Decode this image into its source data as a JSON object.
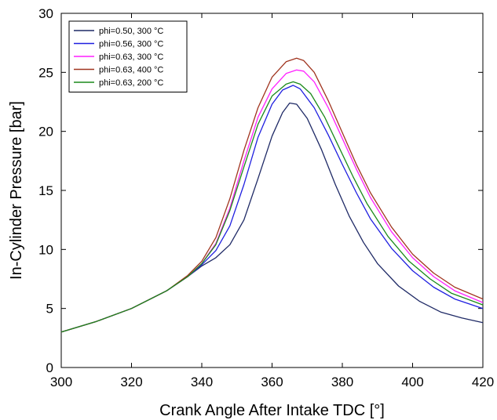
{
  "chart_data": {
    "type": "line",
    "title": "",
    "xlabel": "Crank Angle After Intake TDC [°]",
    "ylabel": "In-Cylinder Pressure [bar]",
    "xlim": [
      300,
      420
    ],
    "ylim": [
      0,
      30
    ],
    "xticks": [
      300,
      320,
      340,
      360,
      380,
      400,
      420
    ],
    "yticks": [
      0,
      5,
      10,
      15,
      20,
      25,
      30
    ],
    "grid": false,
    "legend_position": "top-left",
    "series": [
      {
        "name": "phi=0.50, 300 °C",
        "color": "#1f2a66",
        "x": [
          300,
          310,
          320,
          330,
          336,
          340,
          344,
          348,
          352,
          356,
          360,
          363,
          365,
          367,
          370,
          374,
          378,
          382,
          386,
          390,
          396,
          402,
          408,
          414,
          420
        ],
        "y": [
          3.0,
          3.9,
          5.0,
          6.5,
          7.7,
          8.6,
          9.3,
          10.4,
          12.5,
          16.0,
          19.6,
          21.6,
          22.4,
          22.3,
          21.1,
          18.5,
          15.5,
          12.8,
          10.6,
          8.8,
          6.9,
          5.6,
          4.7,
          4.2,
          3.8
        ]
      },
      {
        "name": "phi=0.56, 300 °C",
        "color": "#1f1fe0",
        "x": [
          300,
          310,
          320,
          330,
          336,
          340,
          344,
          348,
          352,
          356,
          360,
          363,
          366,
          368,
          372,
          376,
          380,
          384,
          388,
          394,
          400,
          406,
          412,
          420
        ],
        "y": [
          3.0,
          3.9,
          5.0,
          6.5,
          7.7,
          8.7,
          9.9,
          12.0,
          15.5,
          19.5,
          22.3,
          23.5,
          23.9,
          23.6,
          22.0,
          19.7,
          17.2,
          14.8,
          12.6,
          10.1,
          8.2,
          6.8,
          5.8,
          5.0
        ]
      },
      {
        "name": "phi=0.63, 300 °C",
        "color": "#ff1fff",
        "x": [
          300,
          310,
          320,
          330,
          336,
          340,
          344,
          348,
          352,
          356,
          360,
          364,
          367,
          369,
          372,
          376,
          380,
          384,
          388,
          394,
          400,
          406,
          412,
          420
        ],
        "y": [
          3.0,
          3.9,
          5.0,
          6.5,
          7.7,
          8.8,
          10.5,
          13.5,
          17.5,
          21.2,
          23.6,
          24.9,
          25.2,
          25.1,
          24.2,
          22.0,
          19.4,
          16.8,
          14.4,
          11.5,
          9.3,
          7.7,
          6.5,
          5.5
        ]
      },
      {
        "name": "phi=0.63, 400 °C",
        "color": "#a0341f",
        "x": [
          300,
          310,
          320,
          330,
          336,
          340,
          344,
          348,
          352,
          356,
          360,
          364,
          367,
          369,
          372,
          376,
          380,
          384,
          388,
          394,
          400,
          406,
          412,
          420
        ],
        "y": [
          3.0,
          3.9,
          5.0,
          6.5,
          7.8,
          9.0,
          11.0,
          14.3,
          18.4,
          22.0,
          24.6,
          25.9,
          26.2,
          26.0,
          25.0,
          22.6,
          19.9,
          17.2,
          14.8,
          11.9,
          9.6,
          8.0,
          6.8,
          5.8
        ]
      },
      {
        "name": "phi=0.63, 200 °C",
        "color": "#1a8a1a",
        "x": [
          300,
          310,
          320,
          330,
          336,
          340,
          344,
          348,
          352,
          356,
          360,
          364,
          366,
          368,
          371,
          375,
          379,
          383,
          387,
          393,
          399,
          405,
          411,
          420
        ],
        "y": [
          3.0,
          3.9,
          5.0,
          6.5,
          7.7,
          8.8,
          10.4,
          13.3,
          17.0,
          20.6,
          23.0,
          24.0,
          24.2,
          24.0,
          23.2,
          21.2,
          18.7,
          16.2,
          13.9,
          11.1,
          9.0,
          7.5,
          6.3,
          5.3
        ]
      }
    ]
  }
}
